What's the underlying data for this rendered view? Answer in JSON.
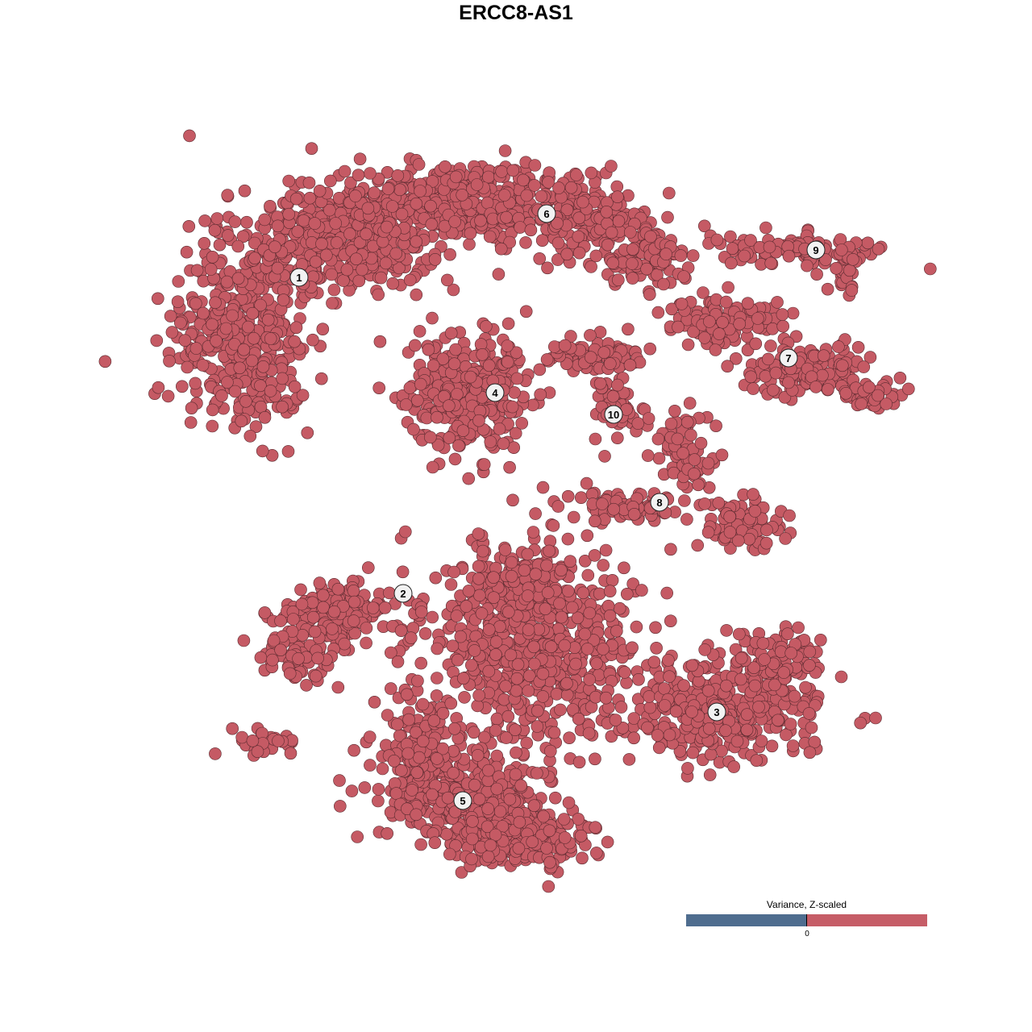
{
  "chart_data": {
    "type": "scatter",
    "title": "ERCC8-AS1",
    "xlabel": "",
    "ylabel": "",
    "grid": false,
    "cluster_labels": [
      "1",
      "2",
      "3",
      "4",
      "5",
      "6",
      "7",
      "8",
      "9",
      "10"
    ],
    "point_color": "#c55a64",
    "point_values_note": "all cells shown above 0 (red)",
    "legend": {
      "title": "Variance, Z-scaled",
      "tick_label": "0",
      "low_color": "#4f6d8f",
      "high_color": "#c65d67",
      "placement": "bottom-right"
    }
  }
}
